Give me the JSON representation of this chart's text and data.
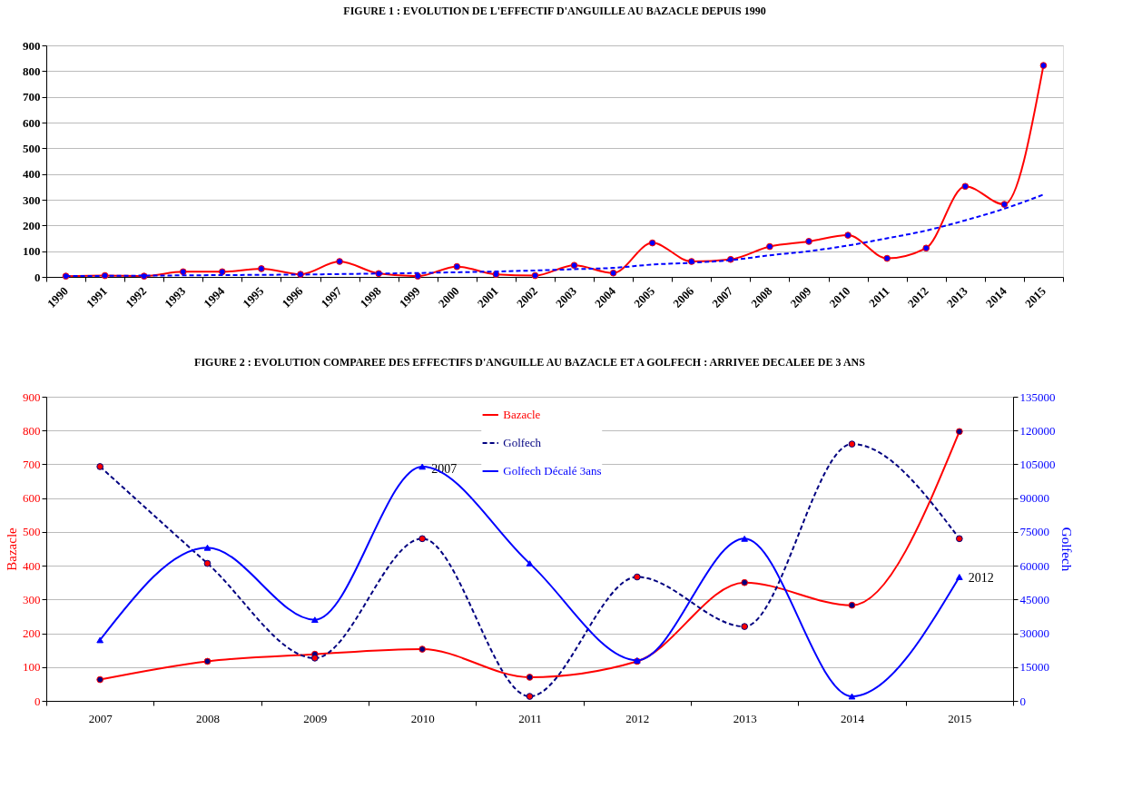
{
  "chart_data": [
    {
      "type": "line",
      "title": "FIGURE 1 : EVOLUTION DE L'EFFECTIF D'ANGUILLE AU BAZACLE DEPUIS 1990",
      "categories": [
        "1990",
        "1991",
        "1992",
        "1993",
        "1994",
        "1995",
        "1996",
        "1997",
        "1998",
        "1999",
        "2000",
        "2001",
        "2002",
        "2003",
        "2004",
        "2005",
        "2006",
        "2007",
        "2008",
        "2009",
        "2010",
        "2011",
        "2012",
        "2013",
        "2014",
        "2015"
      ],
      "series": [
        {
          "color": "#ff0000",
          "marker": "circle",
          "line_style": "solid",
          "colors": [
            "#0000ff",
            "#0000ff",
            "#0000ff",
            "#0000ff",
            "#0000ff",
            "#0000ff",
            "#0000ff",
            "#0000ff",
            "#0000ff",
            "#0000ff",
            "#0000ff",
            "#0000ff",
            "#0000ff",
            "#0000ff",
            "#0000ff",
            "#0000ff",
            "#0000ff",
            "#0000ff",
            "#0000ff",
            "#0000ff",
            "#0000ff",
            "#0000ff",
            "#0000ff",
            "#0000ff",
            "#0000ff",
            "#0000ff"
          ],
          "values": [
            3,
            5,
            3,
            20,
            20,
            32,
            10,
            60,
            13,
            3,
            40,
            10,
            5,
            45,
            15,
            132,
            60,
            68,
            118,
            138,
            162,
            72,
            112,
            352,
            282,
            822
          ]
        },
        {
          "color": "#0000ff",
          "marker": "none",
          "line_style": "dashed",
          "values": [
            3,
            4,
            5,
            6,
            7,
            8,
            9,
            11,
            13,
            15,
            18,
            21,
            25,
            30,
            35,
            48,
            55,
            65,
            84,
            100,
            122,
            150,
            180,
            220,
            265,
            320
          ]
        }
      ],
      "ylim": [
        0,
        900
      ],
      "yticks": [
        0,
        100,
        200,
        300,
        400,
        500,
        600,
        700,
        800,
        900
      ],
      "grid": "y",
      "legend": false
    },
    {
      "type": "line",
      "title": "FIGURE 2 : EVOLUTION COMPAREE DES EFFECTIFS  D'ANGUILLE AU BAZACLE  ET  A GOLFECH : ARRIVEE DECALEE DE 3 ANS",
      "ylabel": "Bazacle",
      "y2label": "Golfech",
      "categories": [
        "2007",
        "2008",
        "2009",
        "2010",
        "2011",
        "2012",
        "2013",
        "2014",
        "2015"
      ],
      "series": [
        {
          "name": "Bazacle",
          "color": "#ff0000",
          "marker": "circle",
          "line_style": "solid",
          "colors": [
            "#000080",
            "#000080",
            "#000080",
            "#000080",
            "#000080",
            "#000080",
            "#000080",
            "#000080",
            "#000080"
          ],
          "values": [
            63,
            117,
            138,
            153,
            70,
            117,
            350,
            283,
            797
          ]
        },
        {
          "name": "Golfech",
          "color": "#000080",
          "marker": "circle",
          "line_style": "dashed",
          "axis": "y2",
          "colors": [
            "#ff0000",
            "#ff0000",
            "#ff0000",
            "#ff0000",
            "#ff0000",
            "#ff0000",
            "#ff0000",
            "#ff0000",
            "#ff0000"
          ],
          "values": [
            104000,
            61000,
            19000,
            72000,
            2000,
            55000,
            33000,
            114000,
            72000
          ]
        },
        {
          "name": "Golfech Décalé 3ans",
          "color": "#0000ff",
          "marker": "triangle",
          "line_style": "solid",
          "axis": "y2",
          "values": [
            27000,
            68000,
            36000,
            104000,
            61000,
            18000,
            72000,
            2000,
            55000
          ]
        }
      ],
      "annotations": [
        {
          "text": "2007",
          "x": "2010",
          "y": 690
        },
        {
          "text": "2012",
          "x": "2015",
          "y": 367
        }
      ],
      "ylim": [
        0,
        900
      ],
      "yticks": [
        0,
        100,
        200,
        300,
        400,
        500,
        600,
        700,
        800,
        900
      ],
      "y2lim": [
        0,
        135000
      ],
      "y2ticks": [
        0,
        15000,
        30000,
        45000,
        60000,
        75000,
        90000,
        105000,
        120000,
        135000
      ],
      "grid": "y",
      "legend": "top"
    }
  ]
}
